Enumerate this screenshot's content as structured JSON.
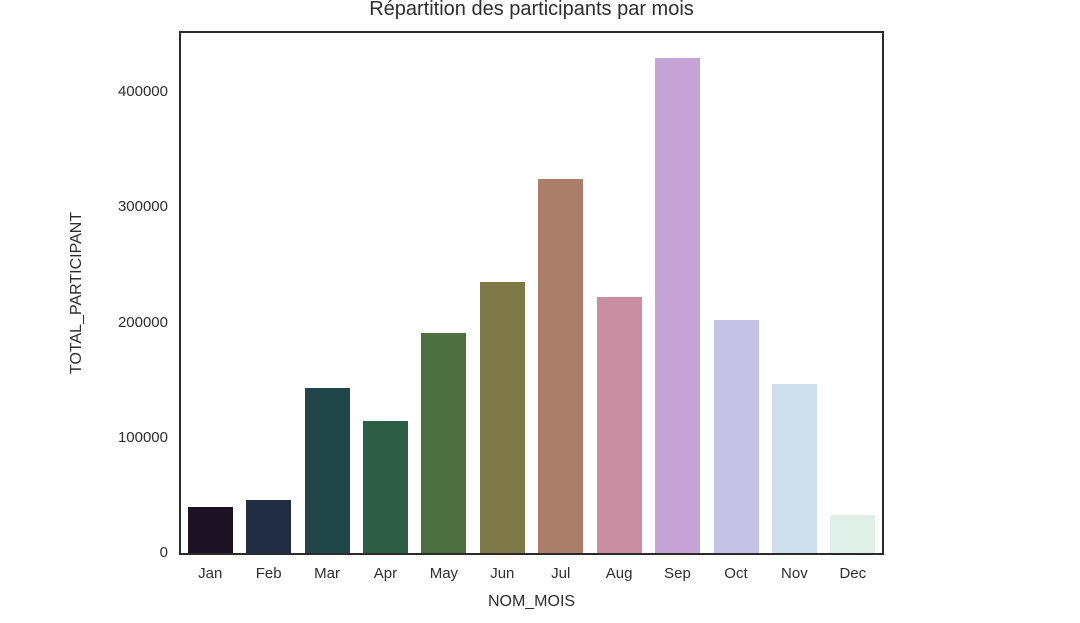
{
  "chart_data": {
    "type": "bar",
    "title": "Répartition des participants par mois",
    "xlabel": "NOM_MOIS",
    "ylabel": "TOTAL_PARTICIPANT",
    "categories": [
      "Jan",
      "Feb",
      "Mar",
      "Apr",
      "May",
      "Jun",
      "Jul",
      "Aug",
      "Sep",
      "Oct",
      "Nov",
      "Dec"
    ],
    "values": [
      40000,
      46000,
      143000,
      115000,
      191000,
      235000,
      325000,
      222000,
      430000,
      202000,
      147000,
      33000
    ],
    "bar_colors": [
      "#1b1325",
      "#222c43",
      "#20464a",
      "#2c5e45",
      "#4c7040",
      "#7d7845",
      "#aa7e69",
      "#c88da0",
      "#c6a3d6",
      "#c6c3e9",
      "#cddfeb",
      "#dff0e9"
    ],
    "yticks": [
      0,
      100000,
      200000,
      300000,
      400000
    ],
    "ylim": [
      0,
      451500
    ],
    "grid": false,
    "legend": null
  },
  "style": {
    "text_color": "#2e2e2e",
    "spine_color": "#2b2b2b",
    "background": "#ffffff"
  }
}
